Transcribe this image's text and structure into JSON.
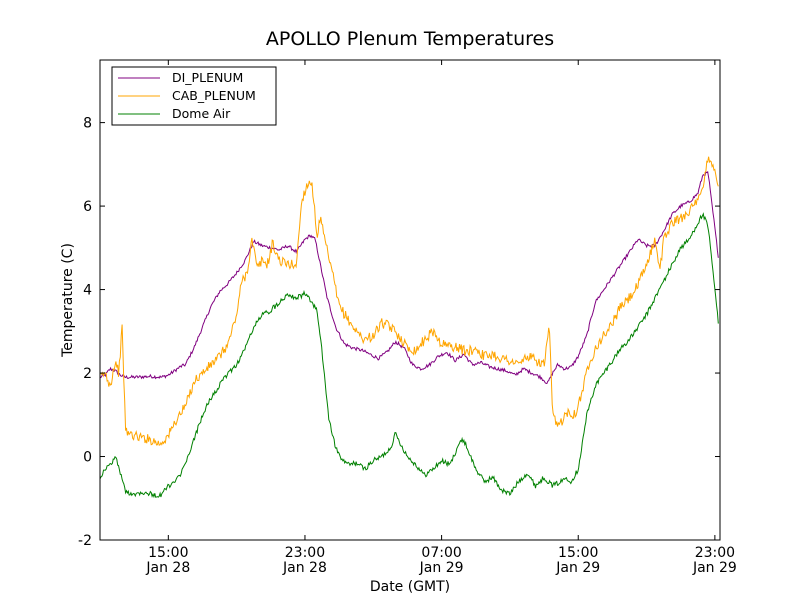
{
  "chart_data": {
    "type": "line",
    "title": "APOLLO Plenum Temperatures",
    "xlabel": "Date (GMT)",
    "ylabel": "Temperature (C)",
    "x_units": "hours since Jan 28 11:00 GMT",
    "xlim": [
      0,
      36.3
    ],
    "ylim": [
      -2,
      9.5
    ],
    "y_ticks": [
      -2,
      0,
      2,
      4,
      6,
      8
    ],
    "x_ticks": [
      {
        "x": 4,
        "label_time": "15:00",
        "label_date": "Jan 28"
      },
      {
        "x": 12,
        "label_time": "23:00",
        "label_date": "Jan 28"
      },
      {
        "x": 20,
        "label_time": "07:00",
        "label_date": "Jan 29"
      },
      {
        "x": 28,
        "label_time": "15:00",
        "label_date": "Jan 29"
      },
      {
        "x": 36,
        "label_time": "23:00",
        "label_date": "Jan 29"
      }
    ],
    "grid": false,
    "legend_position": "top-left",
    "series": [
      {
        "name": "DI_PLENUM",
        "color": "#800080",
        "x": [
          0,
          0.3,
          0.6,
          0.9,
          1.2,
          1.5,
          2,
          3,
          3.6,
          4,
          4.7,
          5,
          5.5,
          6,
          6.5,
          7,
          7.5,
          8,
          8.5,
          9,
          9.5,
          10,
          10.5,
          11,
          11.5,
          12,
          12.3,
          12.6,
          12.9,
          13.3,
          13.8,
          14.3,
          14.8,
          15.3,
          15.8,
          16.3,
          16.8,
          17.3,
          17.8,
          18.3,
          18.8,
          19.3,
          19.8,
          20.3,
          20.8,
          21.3,
          21.8,
          22.3,
          22.8,
          23.3,
          23.8,
          24.3,
          24.8,
          25.3,
          25.8,
          26.2,
          26.5,
          26.8,
          27.2,
          27.6,
          28,
          28.5,
          29,
          29.5,
          30,
          30.5,
          31,
          31.5,
          32,
          32.5,
          33,
          33.5,
          34,
          34.5,
          35,
          35.3,
          35.6,
          35.9,
          36.2
        ],
        "values": [
          1.9,
          1.95,
          2.1,
          2.05,
          1.95,
          1.9,
          1.9,
          1.92,
          1.9,
          1.95,
          2.15,
          2.2,
          2.6,
          3.1,
          3.6,
          3.95,
          4.15,
          4.4,
          4.7,
          5.15,
          5.05,
          5.0,
          4.95,
          5.05,
          4.9,
          5.2,
          5.3,
          5.2,
          4.6,
          3.8,
          3.1,
          2.7,
          2.6,
          2.55,
          2.45,
          2.35,
          2.5,
          2.75,
          2.6,
          2.2,
          2.1,
          2.2,
          2.4,
          2.5,
          2.3,
          2.45,
          2.2,
          2.25,
          2.15,
          2.1,
          2.05,
          1.95,
          2.1,
          2.0,
          1.9,
          1.75,
          2.0,
          2.2,
          2.1,
          2.15,
          2.4,
          2.9,
          3.7,
          4.0,
          4.3,
          4.6,
          4.9,
          5.2,
          5.05,
          5.05,
          5.4,
          5.8,
          6.0,
          6.1,
          6.3,
          6.75,
          6.8,
          5.8,
          4.8
        ]
      },
      {
        "name": "CAB_PLENUM",
        "color": "#ffa500",
        "x": [
          0,
          0.3,
          0.6,
          0.9,
          1.1,
          1.3,
          1.5,
          2,
          2.5,
          3,
          3.5,
          4,
          4.5,
          5,
          5.5,
          6,
          6.5,
          7,
          7.5,
          8,
          8.3,
          8.6,
          8.9,
          9.2,
          9.5,
          9.8,
          10.1,
          10.5,
          11,
          11.5,
          11.8,
          12.1,
          12.4,
          12.7,
          12.9,
          13.2,
          13.6,
          14,
          14.5,
          15,
          15.5,
          16,
          16.5,
          17,
          17.5,
          18,
          18.5,
          19,
          19.5,
          20,
          20.5,
          21,
          21.5,
          22,
          22.5,
          23,
          23.5,
          24,
          24.5,
          25,
          25.5,
          26,
          26.3,
          26.5,
          26.8,
          27.1,
          27.4,
          27.8,
          28.2,
          28.6,
          29,
          29.5,
          30,
          30.5,
          31,
          31.5,
          32,
          32.5,
          32.8,
          33,
          33.5,
          34,
          34.5,
          35,
          35.3,
          35.6,
          35.9,
          36.2
        ],
        "values": [
          1.9,
          2.0,
          1.7,
          2.3,
          2.0,
          3.1,
          0.6,
          0.5,
          0.45,
          0.4,
          0.3,
          0.5,
          0.9,
          1.2,
          1.8,
          2.0,
          2.2,
          2.4,
          2.7,
          3.4,
          4.2,
          4.4,
          5.2,
          4.5,
          4.7,
          4.6,
          5.1,
          4.7,
          4.6,
          4.6,
          6.1,
          6.5,
          6.6,
          5.3,
          5.7,
          5.1,
          4.4,
          3.6,
          3.3,
          3.0,
          2.8,
          2.9,
          3.2,
          3.1,
          2.9,
          2.6,
          2.55,
          2.8,
          3.0,
          2.7,
          2.65,
          2.6,
          2.5,
          2.6,
          2.4,
          2.45,
          2.35,
          2.3,
          2.2,
          2.4,
          2.3,
          2.2,
          3.1,
          1.0,
          0.7,
          0.9,
          1.1,
          1.0,
          1.5,
          2.2,
          2.6,
          2.9,
          3.2,
          3.6,
          3.8,
          4.1,
          4.6,
          5.2,
          4.5,
          5.2,
          5.6,
          5.7,
          5.9,
          6.1,
          6.4,
          7.2,
          7.0,
          6.4
        ]
      },
      {
        "name": "Dome Air",
        "color": "#008000",
        "x": [
          0,
          0.3,
          0.6,
          0.9,
          1.2,
          1.5,
          2,
          2.5,
          3,
          3.5,
          4,
          4.3,
          4.6,
          5,
          5.5,
          6,
          6.5,
          7,
          7.5,
          8,
          8.5,
          9,
          9.5,
          10,
          10.5,
          11,
          11.5,
          12,
          12.4,
          12.7,
          13,
          13.4,
          13.8,
          14.2,
          14.6,
          15,
          15.5,
          16,
          16.5,
          17,
          17.3,
          17.6,
          18,
          18.5,
          19,
          19.5,
          20,
          20.5,
          21,
          21.3,
          21.6,
          22,
          22.5,
          23,
          23.5,
          24,
          24.5,
          25,
          25.5,
          26,
          26.5,
          27,
          27.3,
          27.6,
          28,
          28.5,
          29,
          29.5,
          30,
          30.5,
          31,
          31.5,
          32,
          32.5,
          33,
          33.5,
          34,
          34.5,
          35,
          35.3,
          35.6,
          35.9,
          36.2
        ],
        "values": [
          -0.5,
          -0.3,
          -0.2,
          0.0,
          -0.4,
          -0.85,
          -0.9,
          -0.85,
          -0.9,
          -0.95,
          -0.7,
          -0.65,
          -0.5,
          -0.2,
          0.4,
          1.0,
          1.4,
          1.7,
          2.0,
          2.2,
          2.6,
          3.1,
          3.4,
          3.5,
          3.7,
          3.9,
          3.8,
          3.9,
          3.7,
          3.5,
          2.5,
          0.9,
          0.2,
          -0.1,
          -0.2,
          -0.15,
          -0.3,
          -0.1,
          0.0,
          0.2,
          0.55,
          0.3,
          0.0,
          -0.2,
          -0.45,
          -0.3,
          -0.1,
          -0.2,
          0.3,
          0.4,
          0.1,
          -0.3,
          -0.6,
          -0.5,
          -0.8,
          -0.9,
          -0.6,
          -0.4,
          -0.7,
          -0.5,
          -0.7,
          -0.6,
          -0.5,
          -0.6,
          -0.3,
          1.0,
          1.7,
          2.0,
          2.3,
          2.6,
          2.8,
          3.1,
          3.4,
          3.8,
          4.2,
          4.6,
          5.0,
          5.2,
          5.6,
          5.8,
          5.5,
          4.4,
          3.2
        ]
      }
    ]
  }
}
